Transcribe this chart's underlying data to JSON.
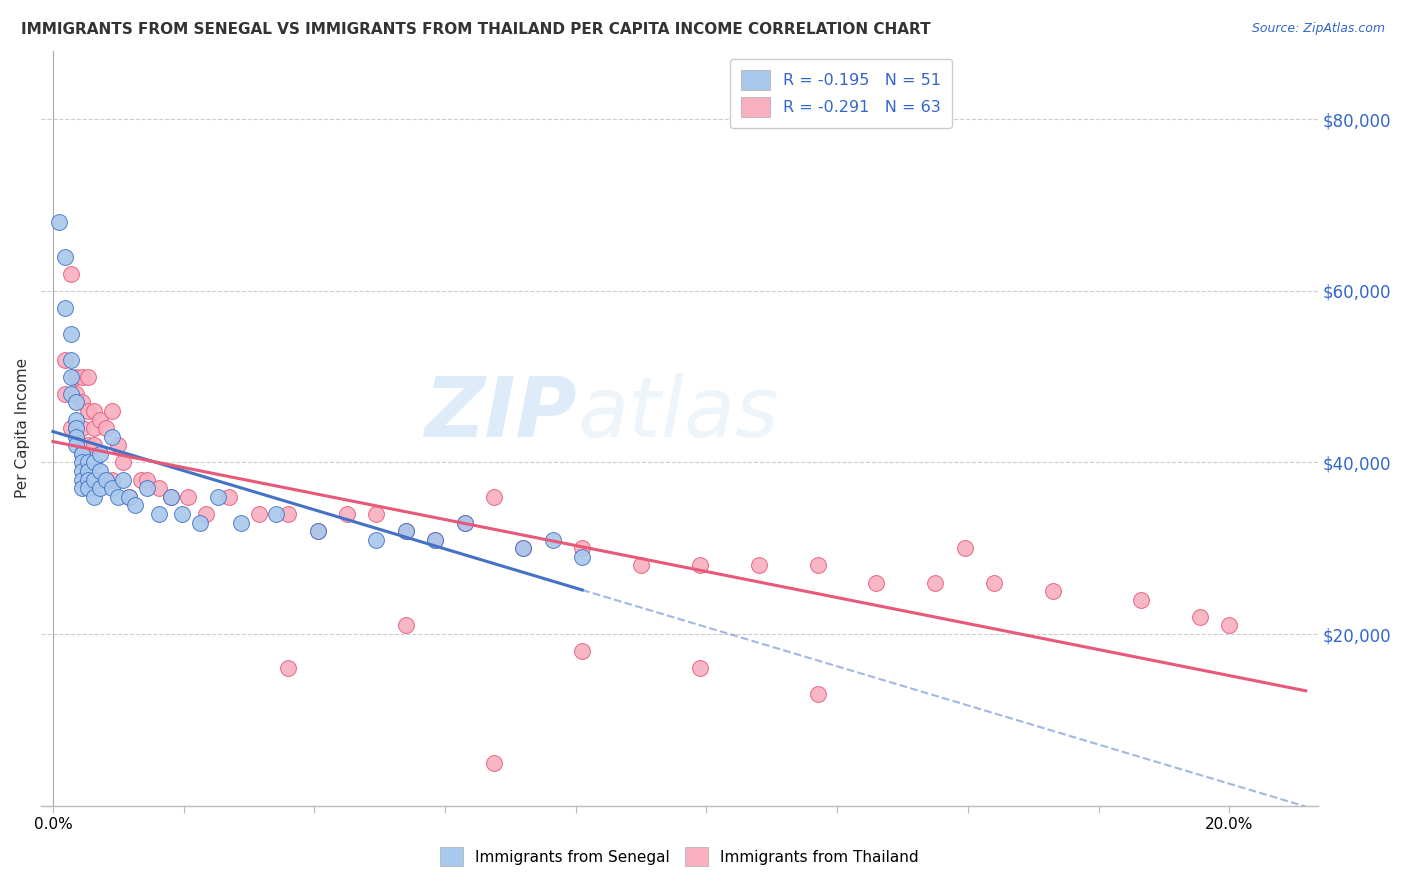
{
  "title": "IMMIGRANTS FROM SENEGAL VS IMMIGRANTS FROM THAILAND PER CAPITA INCOME CORRELATION CHART",
  "source": "Source: ZipAtlas.com",
  "ylabel": "Per Capita Income",
  "xlabel_ticks_labels": [
    "0.0%",
    "",
    "",
    "",
    "",
    "",
    "",
    "",
    "",
    "20.0%"
  ],
  "ylabel_ticks": [
    "$80,000",
    "$60,000",
    "$40,000",
    "$20,000"
  ],
  "ylabel_vals": [
    80000,
    60000,
    40000,
    20000
  ],
  "ylim": [
    0,
    88000
  ],
  "xlim": [
    -0.002,
    0.215
  ],
  "watermark_zip": "ZIP",
  "watermark_atlas": "atlas",
  "legend1_label": "R = -0.195   N = 51",
  "legend2_label": "R = -0.291   N = 63",
  "series1_color": "#a8c8ec",
  "series2_color": "#f8afc0",
  "line1_color": "#4472c4",
  "line2_color": "#e85878",
  "line1_dash_color": "#a8c8ec",
  "senegal_x": [
    0.001,
    0.002,
    0.002,
    0.003,
    0.003,
    0.003,
    0.003,
    0.004,
    0.004,
    0.004,
    0.004,
    0.004,
    0.005,
    0.005,
    0.005,
    0.005,
    0.005,
    0.005,
    0.006,
    0.006,
    0.006,
    0.006,
    0.007,
    0.007,
    0.007,
    0.008,
    0.008,
    0.008,
    0.009,
    0.01,
    0.01,
    0.011,
    0.012,
    0.013,
    0.014,
    0.016,
    0.018,
    0.02,
    0.022,
    0.025,
    0.028,
    0.032,
    0.038,
    0.045,
    0.055,
    0.06,
    0.065,
    0.07,
    0.08,
    0.085,
    0.09
  ],
  "senegal_y": [
    68000,
    64000,
    58000,
    55000,
    52000,
    50000,
    48000,
    47000,
    45000,
    44000,
    43000,
    42000,
    41000,
    41000,
    40000,
    39000,
    38000,
    37000,
    40000,
    39000,
    38000,
    37000,
    40000,
    38000,
    36000,
    41000,
    39000,
    37000,
    38000,
    43000,
    37000,
    36000,
    38000,
    36000,
    35000,
    37000,
    34000,
    36000,
    34000,
    33000,
    36000,
    33000,
    34000,
    32000,
    31000,
    32000,
    31000,
    33000,
    30000,
    31000,
    29000
  ],
  "thailand_x": [
    0.002,
    0.002,
    0.003,
    0.003,
    0.004,
    0.004,
    0.004,
    0.005,
    0.005,
    0.005,
    0.005,
    0.006,
    0.006,
    0.006,
    0.007,
    0.007,
    0.007,
    0.007,
    0.008,
    0.008,
    0.009,
    0.009,
    0.01,
    0.01,
    0.011,
    0.012,
    0.013,
    0.015,
    0.016,
    0.018,
    0.02,
    0.023,
    0.026,
    0.03,
    0.035,
    0.04,
    0.045,
    0.05,
    0.055,
    0.06,
    0.065,
    0.07,
    0.08,
    0.09,
    0.1,
    0.11,
    0.12,
    0.13,
    0.14,
    0.15,
    0.16,
    0.17,
    0.185,
    0.195,
    0.2,
    0.075,
    0.09,
    0.155,
    0.06,
    0.04,
    0.11,
    0.13,
    0.075
  ],
  "thailand_y": [
    52000,
    48000,
    62000,
    44000,
    50000,
    48000,
    44000,
    50000,
    47000,
    44000,
    42000,
    50000,
    46000,
    42000,
    46000,
    44000,
    42000,
    38000,
    45000,
    38000,
    44000,
    38000,
    46000,
    38000,
    42000,
    40000,
    36000,
    38000,
    38000,
    37000,
    36000,
    36000,
    34000,
    36000,
    34000,
    34000,
    32000,
    34000,
    34000,
    32000,
    31000,
    33000,
    30000,
    30000,
    28000,
    28000,
    28000,
    28000,
    26000,
    26000,
    26000,
    25000,
    24000,
    22000,
    21000,
    36000,
    18000,
    30000,
    21000,
    16000,
    16000,
    13000,
    5000
  ]
}
